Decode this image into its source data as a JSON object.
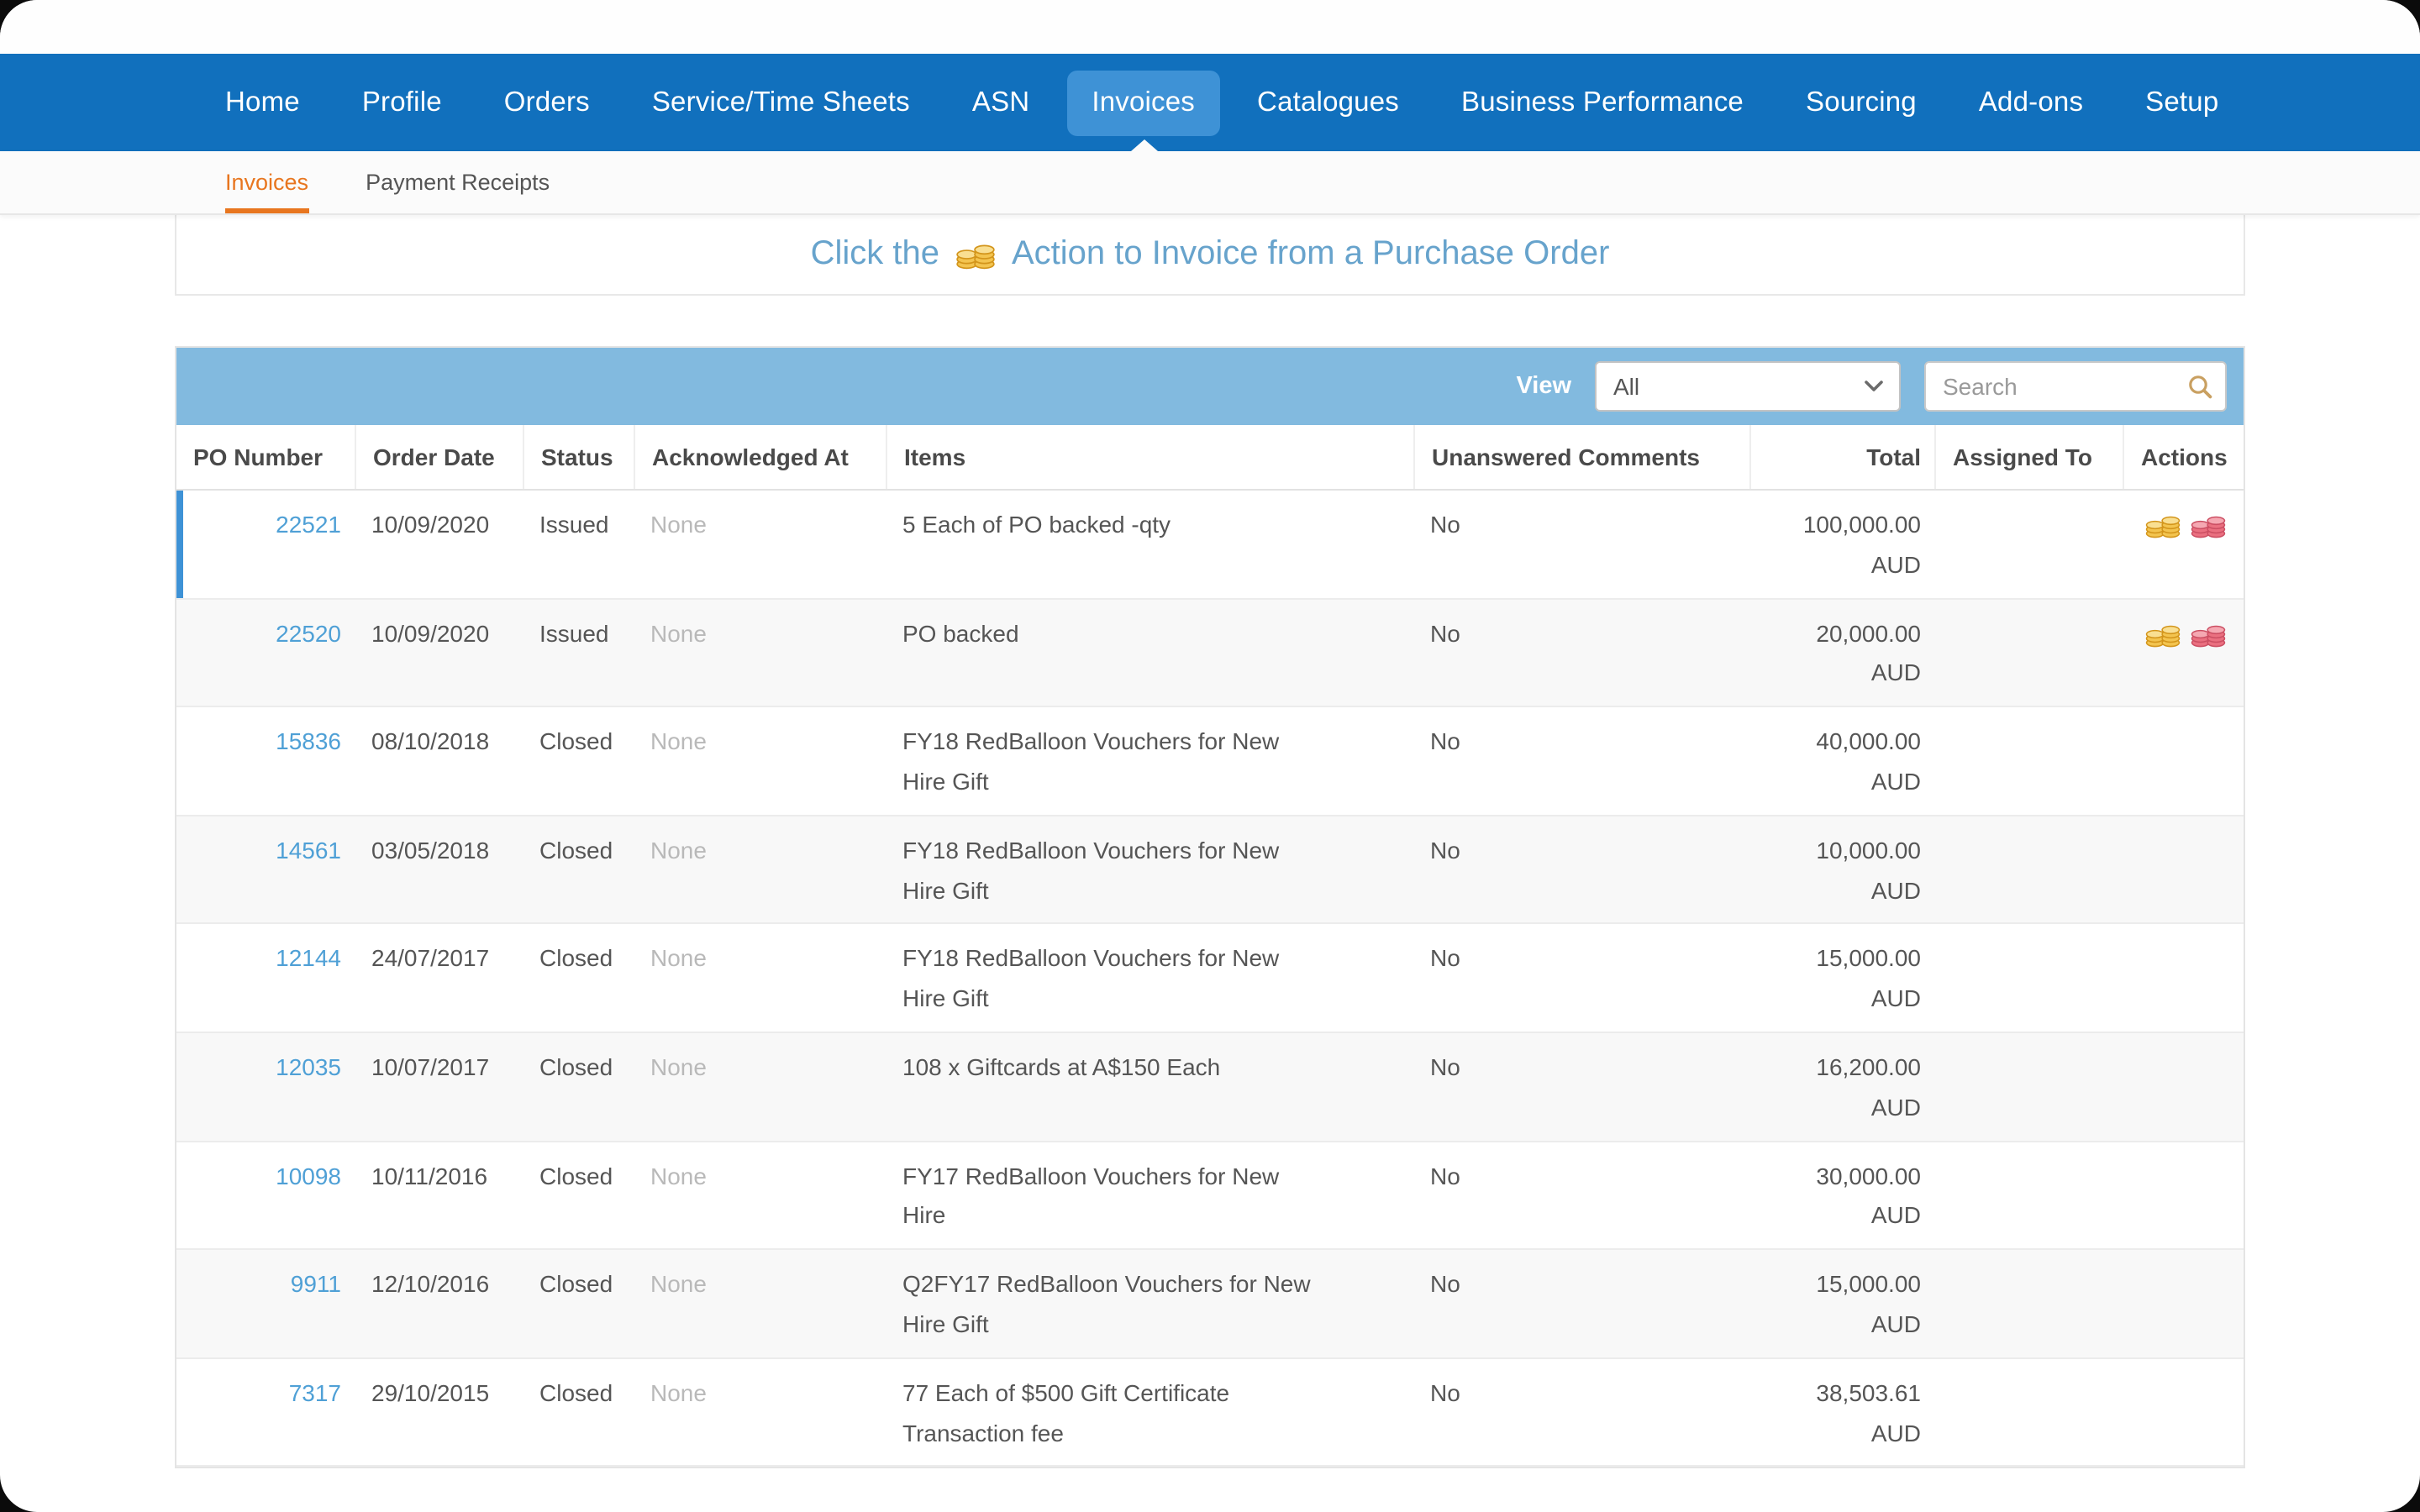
{
  "nav": {
    "items": [
      {
        "label": "Home"
      },
      {
        "label": "Profile"
      },
      {
        "label": "Orders"
      },
      {
        "label": "Service/Time Sheets"
      },
      {
        "label": "ASN"
      },
      {
        "label": "Invoices",
        "active": true
      },
      {
        "label": "Catalogues"
      },
      {
        "label": "Business Performance"
      },
      {
        "label": "Sourcing"
      },
      {
        "label": "Add-ons"
      },
      {
        "label": "Setup"
      }
    ]
  },
  "subnav": {
    "items": [
      {
        "label": "Invoices",
        "active": true
      },
      {
        "label": "Payment Receipts"
      }
    ]
  },
  "banner": {
    "text_before": "Click the",
    "icon": "gold-coins-icon",
    "text_after": "Action to Invoice from a Purchase Order"
  },
  "table": {
    "view_label": "View",
    "view_value": "All",
    "view_icon": "chevron-down-icon",
    "search_placeholder": "Search",
    "search_icon": "magnifier-icon",
    "columns": [
      "PO Number",
      "Order Date",
      "Status",
      "Acknowledged At",
      "Items",
      "Unanswered Comments",
      "Total",
      "Assigned To",
      "Actions"
    ],
    "rows": [
      {
        "po": "22521",
        "order_date": "10/09/2020",
        "status": "Issued",
        "acknowledged_at": "None",
        "items": "5 Each of PO backed -qty",
        "unanswered_comments": "No",
        "total": "100,000.00",
        "currency": "AUD",
        "assigned_to": "",
        "actions": [
          "create-invoice",
          "create-credit-note"
        ],
        "highlight": true
      },
      {
        "po": "22520",
        "order_date": "10/09/2020",
        "status": "Issued",
        "acknowledged_at": "None",
        "items": "PO backed",
        "unanswered_comments": "No",
        "total": "20,000.00",
        "currency": "AUD",
        "assigned_to": "",
        "actions": [
          "create-invoice",
          "create-credit-note"
        ],
        "highlight": false
      },
      {
        "po": "15836",
        "order_date": "08/10/2018",
        "status": "Closed",
        "acknowledged_at": "None",
        "items": "FY18 RedBalloon Vouchers for New Hire Gift",
        "unanswered_comments": "No",
        "total": "40,000.00",
        "currency": "AUD",
        "assigned_to": "",
        "actions": [],
        "highlight": false
      },
      {
        "po": "14561",
        "order_date": "03/05/2018",
        "status": "Closed",
        "acknowledged_at": "None",
        "items": "FY18 RedBalloon Vouchers for New Hire Gift",
        "unanswered_comments": "No",
        "total": "10,000.00",
        "currency": "AUD",
        "assigned_to": "",
        "actions": [],
        "highlight": false
      },
      {
        "po": "12144",
        "order_date": "24/07/2017",
        "status": "Closed",
        "acknowledged_at": "None",
        "items": "FY18 RedBalloon Vouchers for New Hire Gift",
        "unanswered_comments": "No",
        "total": "15,000.00",
        "currency": "AUD",
        "assigned_to": "",
        "actions": [],
        "highlight": false
      },
      {
        "po": "12035",
        "order_date": "10/07/2017",
        "status": "Closed",
        "acknowledged_at": "None",
        "items": "108 x Giftcards at A$150 Each",
        "unanswered_comments": "No",
        "total": "16,200.00",
        "currency": "AUD",
        "assigned_to": "",
        "actions": [],
        "highlight": false
      },
      {
        "po": "10098",
        "order_date": "10/11/2016",
        "status": "Closed",
        "acknowledged_at": "None",
        "items": "FY17 RedBalloon Vouchers for New Hire",
        "unanswered_comments": "No",
        "total": "30,000.00",
        "currency": "AUD",
        "assigned_to": "",
        "actions": [],
        "highlight": false
      },
      {
        "po": "9911",
        "order_date": "12/10/2016",
        "status": "Closed",
        "acknowledged_at": "None",
        "items": "Q2FY17 RedBalloon Vouchers for New Hire Gift",
        "unanswered_comments": "No",
        "total": "15,000.00",
        "currency": "AUD",
        "assigned_to": "",
        "actions": [],
        "highlight": false
      },
      {
        "po": "7317",
        "order_date": "29/10/2015",
        "status": "Closed",
        "acknowledged_at": "None",
        "items": "77 Each of $500 Gift Certificate Transaction fee",
        "unanswered_comments": "No",
        "total": "38,503.61",
        "currency": "AUD",
        "assigned_to": "",
        "actions": [],
        "highlight": false
      }
    ]
  },
  "colors": {
    "nav_blue": "#1170BD",
    "active_tab_blue": "#3E92D6",
    "accent_orange": "#E8761F",
    "band_blue": "#82BADF",
    "link_blue": "#4FA0D6",
    "banner_text_blue": "#67A3CC",
    "gold_coin": "#F3C44F",
    "red_coin": "#EA7080"
  }
}
